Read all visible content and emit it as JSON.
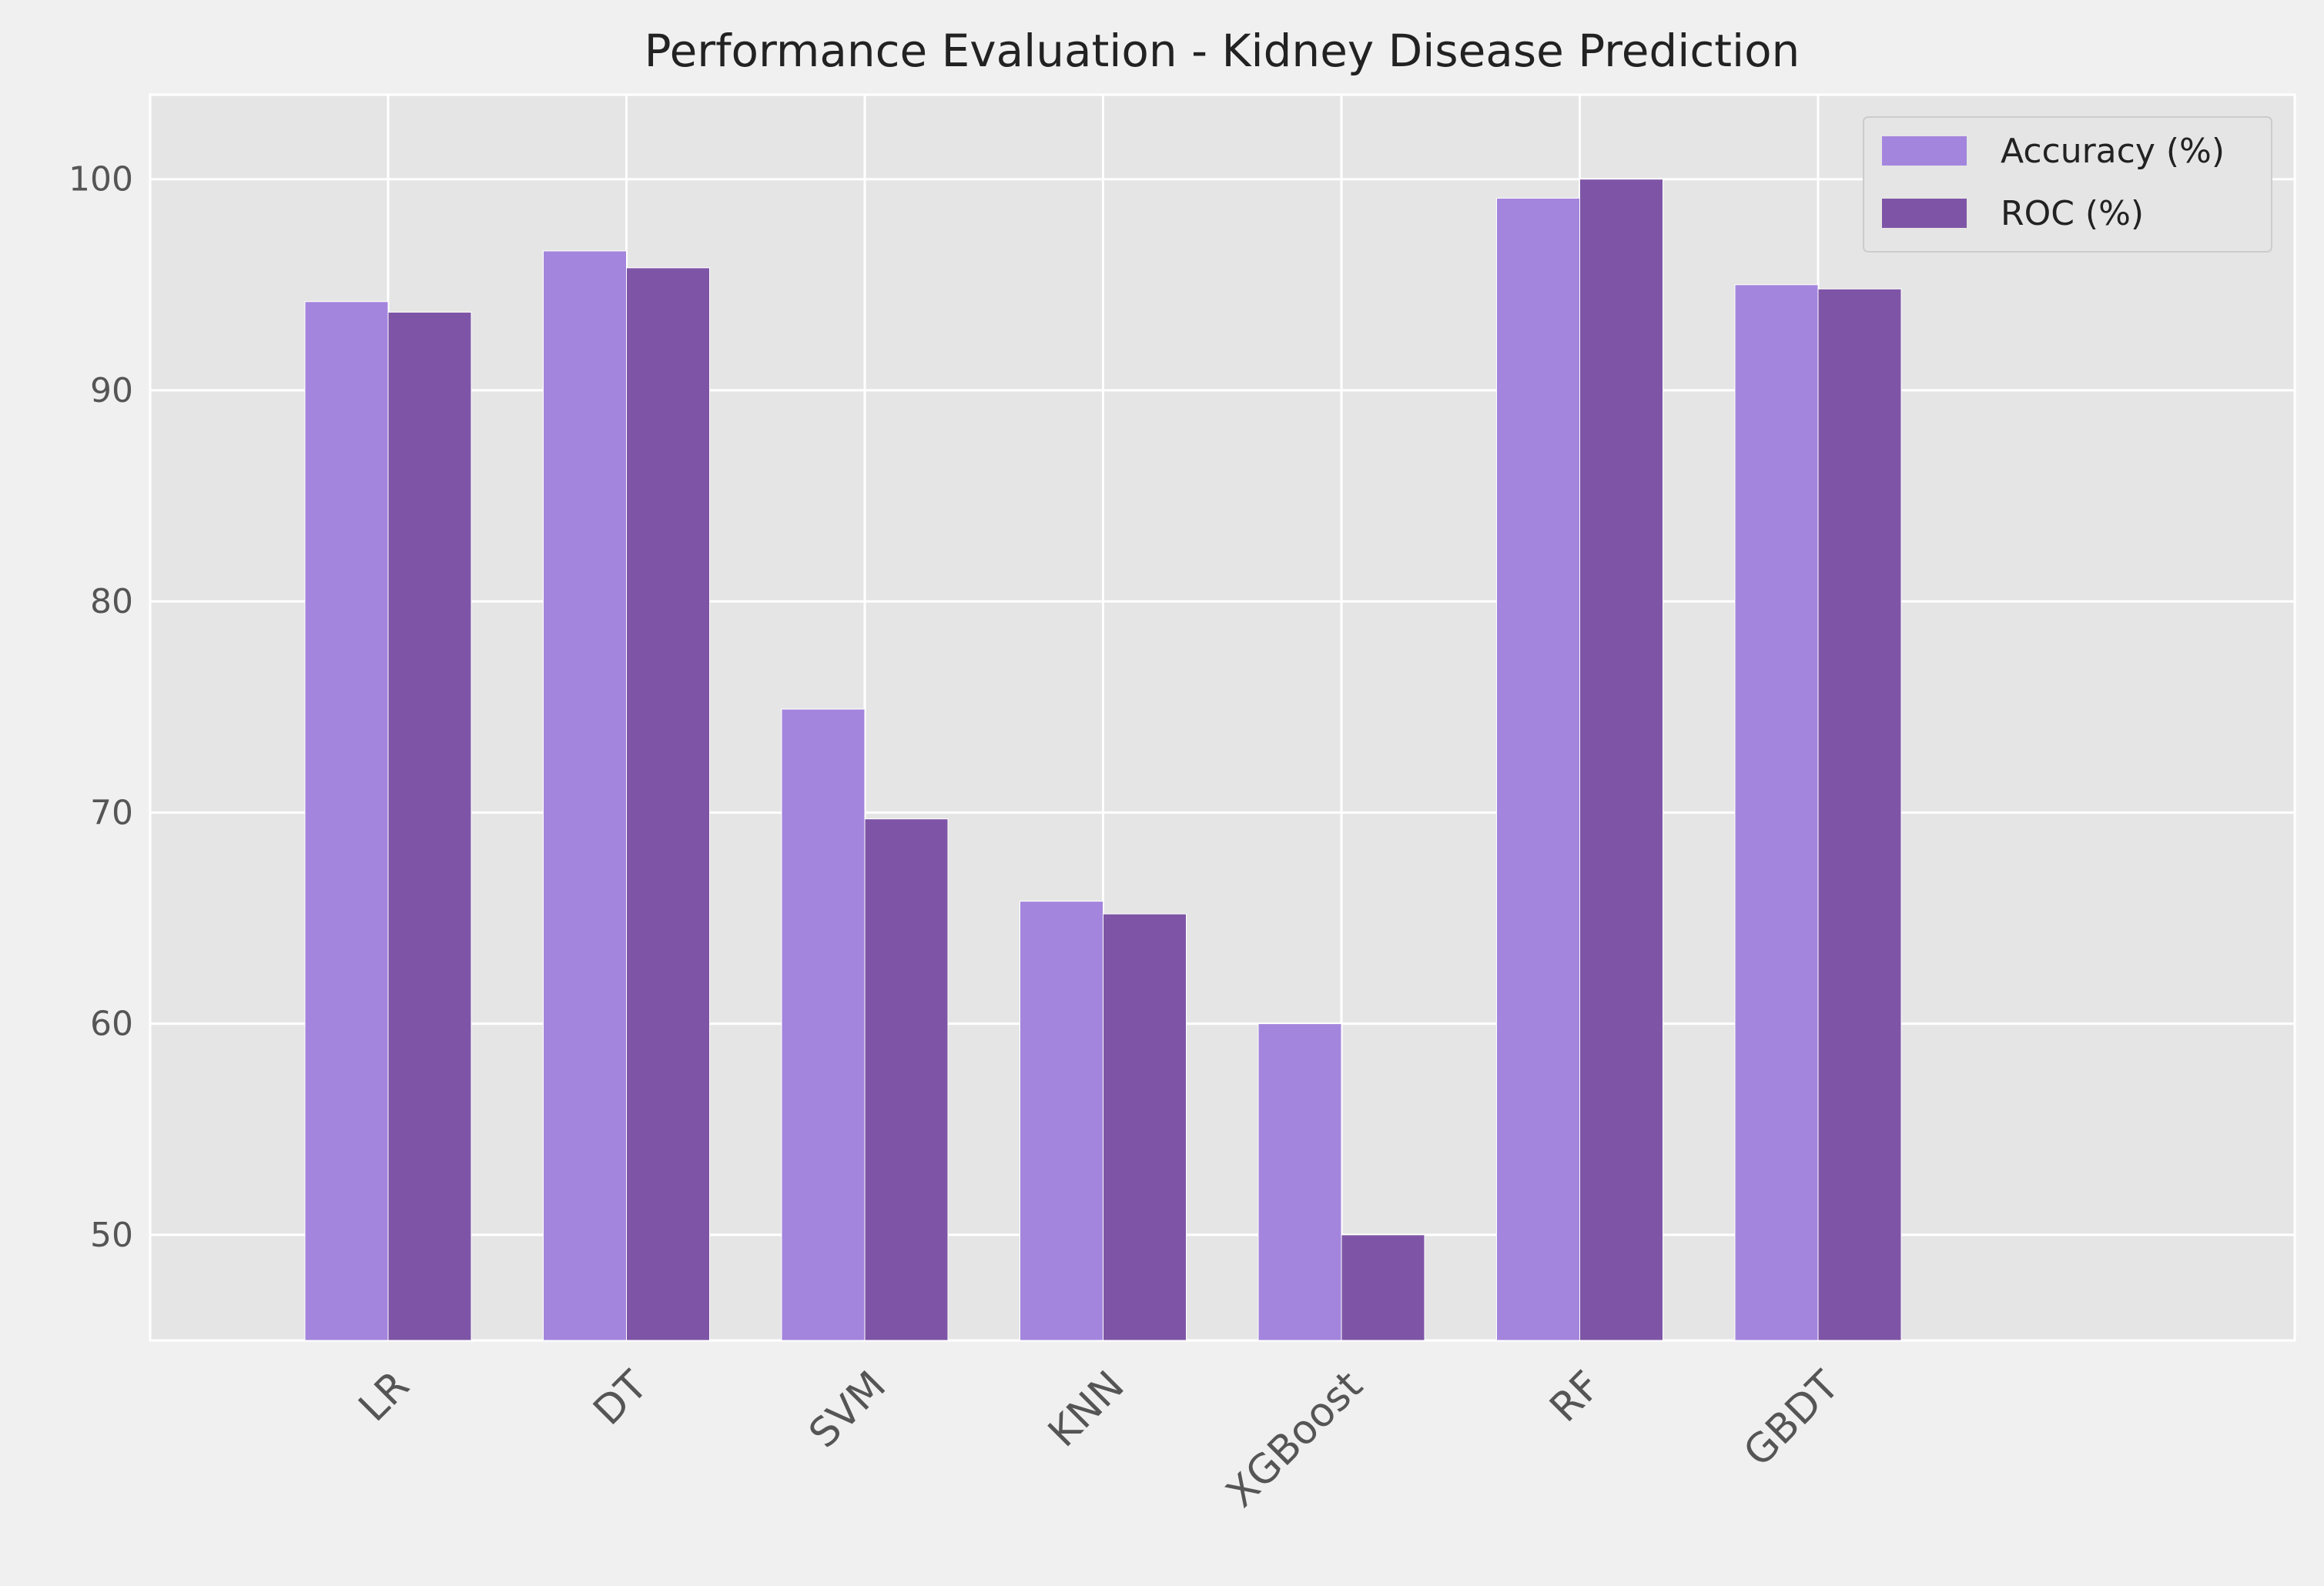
{
  "chart_data": {
    "type": "bar",
    "title": "Performance Evaluation - Kidney Disease Prediction",
    "xlabel": "",
    "ylabel": "",
    "categories": [
      "LR",
      "DT",
      "SVM",
      "KNN",
      "XGBoost",
      "RF",
      "GBDT"
    ],
    "series": [
      {
        "name": "Accuracy (%)",
        "color": "#a385dd",
        "values": [
          94.2,
          96.6,
          74.9,
          65.8,
          60.0,
          99.1,
          95.0
        ]
      },
      {
        "name": "ROC (%)",
        "color": "#7e55a6",
        "values": [
          93.7,
          95.8,
          69.7,
          65.2,
          50.0,
          100.0,
          94.8
        ]
      }
    ],
    "ylim": [
      45,
      104
    ],
    "yticks": [
      50,
      60,
      70,
      80,
      90,
      100
    ],
    "grid": true,
    "legend_position": "top-right",
    "style": {
      "figure_background": "#f0f0f0",
      "plot_background": "#e5e5e5",
      "grid_color": "#ffffff"
    }
  }
}
